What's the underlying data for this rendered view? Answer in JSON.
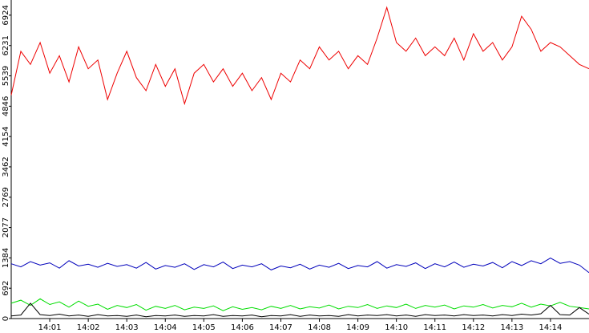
{
  "chart_data": {
    "type": "line",
    "x": [
      840,
      840.25,
      840.5,
      840.75,
      841,
      841.25,
      841.5,
      841.75,
      842,
      842.25,
      842.5,
      842.75,
      843,
      843.25,
      843.5,
      843.75,
      844,
      844.25,
      844.5,
      844.75,
      845,
      845.25,
      845.5,
      845.75,
      846,
      846.25,
      846.5,
      846.75,
      847,
      847.25,
      847.5,
      847.75,
      848,
      848.25,
      848.5,
      848.75,
      849,
      849.25,
      849.5,
      849.75,
      850,
      850.25,
      850.5,
      850.75,
      851,
      851.25,
      851.5,
      851.75,
      852,
      852.25,
      852.5,
      852.75,
      853,
      853.25,
      853.5,
      853.75,
      854,
      854.25,
      854.5,
      854.75,
      855
    ],
    "xlim": [
      840,
      855
    ],
    "xticks": [
      {
        "value": 841,
        "label": "14:01"
      },
      {
        "value": 842,
        "label": "14:02"
      },
      {
        "value": 843,
        "label": "14:03"
      },
      {
        "value": 844,
        "label": "14:04"
      },
      {
        "value": 845,
        "label": "14:05"
      },
      {
        "value": 846,
        "label": "14:06"
      },
      {
        "value": 847,
        "label": "14:07"
      },
      {
        "value": 848,
        "label": "14:08"
      },
      {
        "value": 849,
        "label": "14:09"
      },
      {
        "value": 850,
        "label": "14:10"
      },
      {
        "value": 851,
        "label": "14:11"
      },
      {
        "value": 852,
        "label": "14:12"
      },
      {
        "value": 853,
        "label": "14:13"
      },
      {
        "value": 854,
        "label": "14:14"
      }
    ],
    "ylim": [
      0,
      7270
    ],
    "yticks": [
      0,
      692,
      1384,
      2077,
      2769,
      3462,
      4154,
      4846,
      5539,
      6231,
      6924
    ],
    "series": [
      {
        "color": "#ee0000",
        "values": [
          5100,
          6100,
          5800,
          6300,
          5600,
          6000,
          5400,
          6200,
          5700,
          5900,
          5000,
          5600,
          6100,
          5500,
          5200,
          5800,
          5300,
          5700,
          4900,
          5600,
          5800,
          5400,
          5700,
          5300,
          5600,
          5200,
          5500,
          5000,
          5600,
          5400,
          5900,
          5700,
          6200,
          5900,
          6100,
          5700,
          6000,
          5800,
          6400,
          7100,
          6300,
          6100,
          6400,
          6000,
          6200,
          6000,
          6400,
          5900,
          6500,
          6100,
          6300,
          5900,
          6200,
          6900,
          6600,
          6100,
          6300,
          6200,
          6000,
          5800,
          5700
        ]
      },
      {
        "color": "#0000bb",
        "values": [
          1250,
          1180,
          1300,
          1220,
          1270,
          1150,
          1320,
          1200,
          1240,
          1170,
          1260,
          1190,
          1230,
          1150,
          1280,
          1130,
          1210,
          1170,
          1250,
          1120,
          1230,
          1180,
          1290,
          1140,
          1220,
          1180,
          1250,
          1110,
          1200,
          1160,
          1240,
          1130,
          1220,
          1170,
          1260,
          1140,
          1210,
          1180,
          1300,
          1150,
          1230,
          1190,
          1270,
          1140,
          1250,
          1180,
          1290,
          1170,
          1240,
          1200,
          1280,
          1160,
          1300,
          1210,
          1320,
          1250,
          1380,
          1260,
          1300,
          1220,
          1050
        ]
      },
      {
        "color": "#00dd00",
        "values": [
          350,
          420,
          300,
          450,
          320,
          380,
          260,
          400,
          280,
          330,
          210,
          300,
          250,
          320,
          190,
          280,
          230,
          300,
          200,
          260,
          230,
          290,
          180,
          270,
          210,
          250,
          200,
          280,
          230,
          300,
          220,
          270,
          240,
          310,
          220,
          280,
          250,
          320,
          230,
          290,
          250,
          330,
          230,
          300,
          260,
          310,
          220,
          290,
          260,
          320,
          240,
          300,
          270,
          350,
          260,
          330,
          290,
          370,
          280,
          250,
          220
        ]
      },
      {
        "color": "#000000",
        "values": [
          60,
          80,
          350,
          90,
          70,
          100,
          60,
          80,
          50,
          90,
          60,
          70,
          50,
          80,
          40,
          70,
          60,
          80,
          50,
          70,
          60,
          90,
          50,
          70,
          60,
          80,
          40,
          70,
          60,
          90,
          50,
          80,
          60,
          70,
          50,
          90,
          60,
          80,
          70,
          90,
          60,
          80,
          50,
          90,
          70,
          80,
          60,
          90,
          70,
          80,
          60,
          90,
          70,
          100,
          80,
          110,
          300,
          90,
          80,
          250,
          100
        ]
      }
    ]
  }
}
